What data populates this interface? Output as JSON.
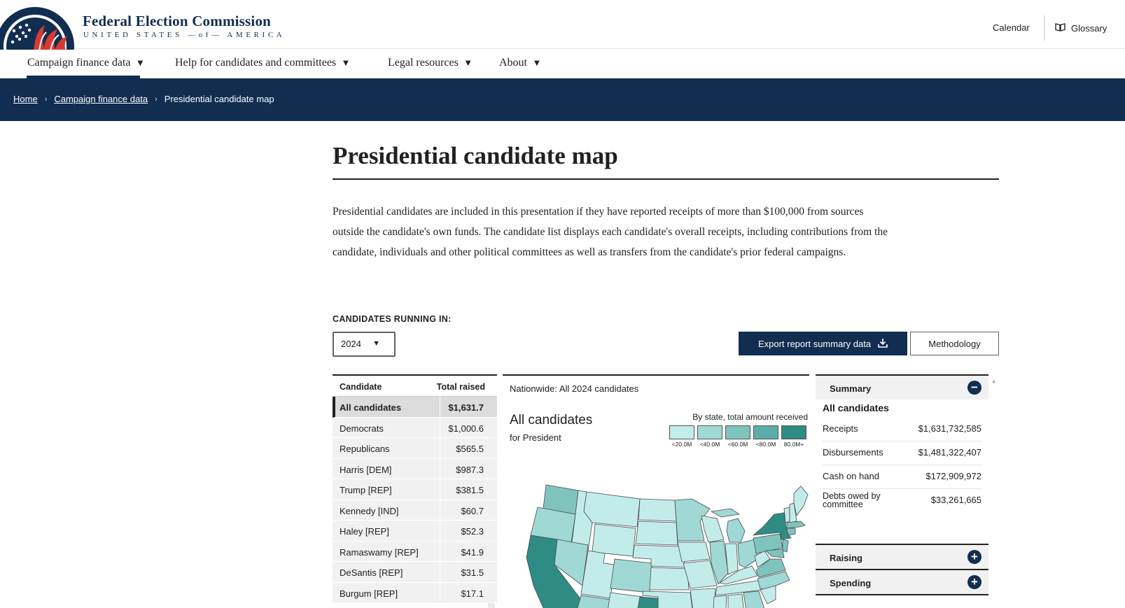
{
  "header": {
    "org_name": "Federal Election Commission",
    "org_sub": "UNITED STATES —of— AMERICA",
    "utility": {
      "calendar": "Calendar",
      "glossary": "Glossary"
    }
  },
  "nav": {
    "items": [
      {
        "label": "Campaign finance data"
      },
      {
        "label": "Help for candidates and committees"
      },
      {
        "label": "Legal resources"
      },
      {
        "label": "About"
      }
    ]
  },
  "breadcrumb": {
    "home": "Home",
    "section": "Campaign finance data",
    "current": "Presidential candidate map"
  },
  "page": {
    "title": "Presidential candidate map",
    "intro": "Presidential candidates are included in this presentation if they have reported receipts of more than $100,000 from sources outside the candidate's own funds. The candidate list displays each candidate's overall receipts, including contributions from the candidate, individuals and other political committees as well as transfers from the candidate's prior federal campaigns."
  },
  "controls": {
    "running_label": "CANDIDATES RUNNING IN:",
    "year": "2024",
    "export_label": "Export report summary data",
    "methodology_label": "Methodology"
  },
  "candidates": {
    "col_candidate": "Candidate",
    "col_total": "Total raised",
    "rows": [
      {
        "name": "All candidates",
        "total": "$1,631.7"
      },
      {
        "name": "Democrats",
        "total": "$1,000.6"
      },
      {
        "name": "Republicans",
        "total": "$565.5"
      },
      {
        "name": "Harris [DEM]",
        "total": "$987.3"
      },
      {
        "name": "Trump [REP]",
        "total": "$381.5"
      },
      {
        "name": "Kennedy [IND]",
        "total": "$60.7"
      },
      {
        "name": "Haley [REP]",
        "total": "$52.3"
      },
      {
        "name": "Ramaswamy [REP]",
        "total": "$41.9"
      },
      {
        "name": "DeSantis [REP]",
        "total": "$31.5"
      },
      {
        "name": "Burgum [REP]",
        "total": "$17.1"
      }
    ]
  },
  "map": {
    "nationwide": "Nationwide: All 2024 candidates",
    "title": "All candidates",
    "subtitle": "for President",
    "legend_title": "By state, total amount received",
    "legend": [
      {
        "label": "<20.0M",
        "color": "#c2ecea"
      },
      {
        "label": "<40.0M",
        "color": "#9fd8d5"
      },
      {
        "label": "<60.0M",
        "color": "#7fc3be"
      },
      {
        "label": "<80.0M",
        "color": "#5cada8"
      },
      {
        "label": "80.0M+",
        "color": "#2e8c85"
      }
    ]
  },
  "summary": {
    "heading": "Summary",
    "name": "All candidates",
    "rows": [
      {
        "label": "Receipts",
        "value": "$1,631,732,585"
      },
      {
        "label": "Disbursements",
        "value": "$1,481,322,407"
      },
      {
        "label": "Cash on hand",
        "value": "$172,909,972"
      },
      {
        "label": "Debts owed by committee",
        "value": "$33,261,665"
      }
    ],
    "raising": "Raising",
    "spending": "Spending"
  }
}
